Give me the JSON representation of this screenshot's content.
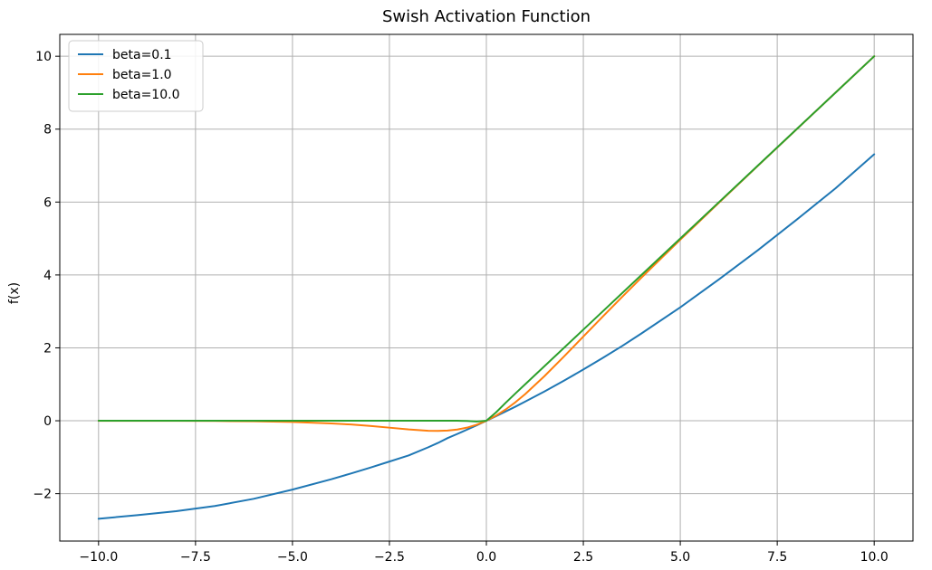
{
  "chart_data": {
    "type": "line",
    "title": "Swish Activation Function",
    "xlabel": "",
    "ylabel": "f(x)",
    "xlim": [
      -11.0,
      11.0
    ],
    "ylim": [
      -3.3,
      10.6
    ],
    "x_ticks": [
      -10.0,
      -7.5,
      -5.0,
      -2.5,
      0.0,
      2.5,
      5.0,
      7.5,
      10.0
    ],
    "x_tick_labels": [
      "−10.0",
      "−7.5",
      "−5.0",
      "−2.5",
      "0.0",
      "2.5",
      "5.0",
      "7.5",
      "10.0"
    ],
    "y_ticks": [
      -2,
      0,
      2,
      4,
      6,
      8,
      10
    ],
    "y_tick_labels": [
      "−2",
      "0",
      "2",
      "4",
      "6",
      "8",
      "10"
    ],
    "grid": true,
    "legend_position": "top-left",
    "x": [
      -10.0,
      -9.0,
      -8.0,
      -7.0,
      -6.0,
      -5.0,
      -4.0,
      -3.5,
      -3.0,
      -2.5,
      -2.0,
      -1.5,
      -1.25,
      -1.0,
      -0.75,
      -0.5,
      -0.25,
      0.0,
      0.25,
      0.5,
      0.75,
      1.0,
      1.5,
      2.0,
      2.5,
      3.0,
      3.5,
      4.0,
      5.0,
      6.0,
      7.0,
      8.0,
      9.0,
      10.0
    ],
    "series": [
      {
        "name": "beta=0.1",
        "color": "#1f77b4",
        "values": [
          -2.689,
          -2.589,
          -2.48,
          -2.338,
          -2.141,
          -1.888,
          -1.604,
          -1.449,
          -1.287,
          -1.119,
          -0.95,
          -0.728,
          -0.609,
          -0.475,
          -0.362,
          -0.244,
          -0.124,
          0.0,
          0.126,
          0.256,
          0.388,
          0.525,
          0.806,
          1.1,
          1.406,
          1.723,
          2.051,
          2.396,
          3.112,
          3.881,
          4.678,
          5.517,
          6.374,
          7.311
        ]
      },
      {
        "name": "beta=1.0",
        "color": "#ff7f0e",
        "values": [
          -0.0005,
          -0.0011,
          -0.0027,
          -0.0064,
          -0.0148,
          -0.0335,
          -0.0719,
          -0.1026,
          -0.1423,
          -0.1896,
          -0.2384,
          -0.2736,
          -0.2781,
          -0.2689,
          -0.2405,
          -0.1888,
          -0.1097,
          0.0,
          0.1403,
          0.3112,
          0.5095,
          0.7311,
          1.2264,
          1.7616,
          2.3104,
          2.8577,
          3.3974,
          3.9281,
          4.9665,
          5.9852,
          6.9936,
          7.9973,
          8.9989,
          9.9995
        ]
      },
      {
        "name": "beta=10.0",
        "color": "#2ca02c",
        "values": [
          0.0,
          0.0,
          0.0,
          0.0,
          0.0,
          0.0,
          0.0,
          0.0,
          0.0,
          0.0,
          0.0,
          0.0,
          0.0,
          0.0,
          0.0,
          -0.0034,
          -0.019,
          0.0,
          0.231,
          0.4966,
          0.75,
          1.0,
          1.5,
          2.0,
          2.5,
          3.0,
          3.5,
          4.0,
          5.0,
          6.0,
          7.0,
          8.0,
          9.0,
          10.0
        ]
      }
    ]
  }
}
